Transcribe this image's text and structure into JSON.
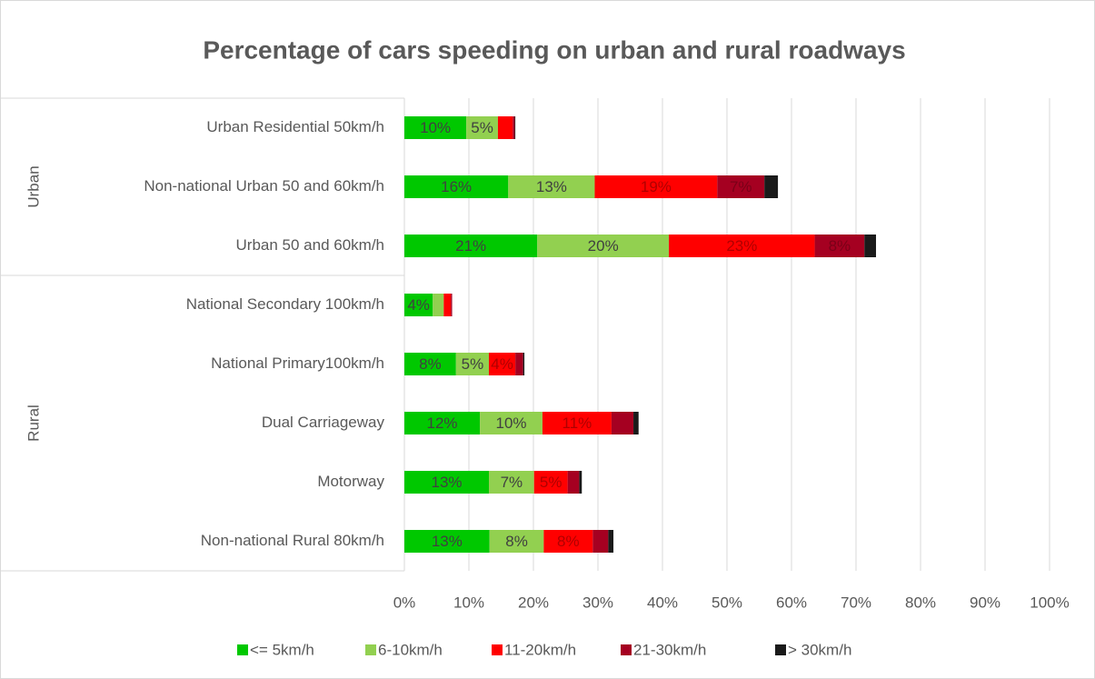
{
  "chart_data": {
    "type": "stacked-barh",
    "title": "Percentage of cars speeding on urban and rural roadways",
    "categories": [
      "Urban Residential 50km/h",
      "Non-national Urban 50 and 60km/h",
      "Urban 50 and 60km/h",
      "National Secondary 100km/h",
      "National Primary100km/h",
      "Dual Carriageway",
      "Motorway",
      "Non-national Rural 80km/h"
    ],
    "category_groups": [
      "Urban",
      "Urban",
      "Urban",
      "Rural",
      "Rural",
      "Rural",
      "Rural",
      "Rural"
    ],
    "series": [
      {
        "name": "<= 5km/h",
        "color": "#00c800",
        "label_color": "#404040",
        "values": [
          9.6,
          16.1,
          20.6,
          4.4,
          8.0,
          11.7,
          13.1,
          13.2
        ],
        "value_labels": [
          "10%",
          "16%",
          "21%",
          "4%",
          "8%",
          "12%",
          "13%",
          "13%"
        ]
      },
      {
        "name": "6-10km/h",
        "color": "#92d050",
        "label_color": "#404040",
        "values": [
          4.9,
          13.4,
          20.4,
          1.7,
          5.1,
          9.7,
          7.0,
          8.4
        ],
        "value_labels": [
          "5%",
          "13%",
          "20%",
          null,
          "5%",
          "10%",
          "7%",
          "8%"
        ]
      },
      {
        "name": "11-20km/h",
        "color": "#ff0000",
        "label_color": "#b00000",
        "values": [
          2.3,
          19.0,
          22.6,
          1.1,
          4.1,
          10.7,
          5.2,
          7.6
        ],
        "value_labels": [
          null,
          "19%",
          "23%",
          null,
          "4%",
          "11%",
          "5%",
          "8%"
        ]
      },
      {
        "name": "21-30km/h",
        "color": "#a50021",
        "label_color": "#7a0018",
        "values": [
          0.3,
          7.3,
          7.7,
          0.2,
          1.2,
          3.4,
          1.8,
          2.4
        ],
        "value_labels": [
          null,
          "7%",
          "8%",
          null,
          null,
          null,
          null,
          null
        ]
      },
      {
        "name": "> 30km/h",
        "color": "#1a1a1a",
        "label_color": "#404040",
        "values": [
          0.1,
          2.1,
          1.8,
          0.0,
          0.2,
          0.8,
          0.4,
          0.8
        ],
        "value_labels": [
          null,
          null,
          null,
          null,
          null,
          null,
          null,
          null
        ]
      }
    ],
    "xlim": [
      0,
      100
    ],
    "xticks": [
      {
        "value": 0,
        "label": "0%"
      },
      {
        "value": 10,
        "label": "10%"
      },
      {
        "value": 20,
        "label": "20%"
      },
      {
        "value": 30,
        "label": "30%"
      },
      {
        "value": 40,
        "label": "40%"
      },
      {
        "value": 50,
        "label": "50%"
      },
      {
        "value": 60,
        "label": "60%"
      },
      {
        "value": 70,
        "label": "70%"
      },
      {
        "value": 80,
        "label": "80%"
      },
      {
        "value": 90,
        "label": "90%"
      },
      {
        "value": 100,
        "label": "100%"
      }
    ],
    "grid": true,
    "legend": "bottom"
  }
}
